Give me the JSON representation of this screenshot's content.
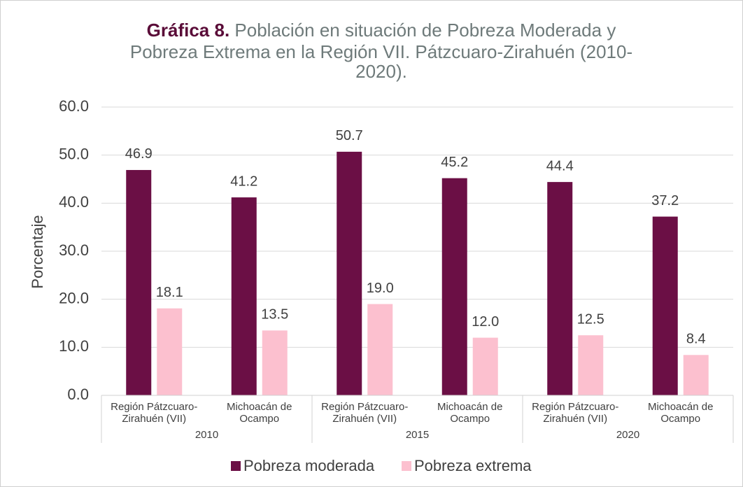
{
  "chart_data": {
    "type": "bar",
    "title_prefix": "Gráfica 8.",
    "title_lines": [
      "Población en situación de Pobreza Moderada y",
      "Pobreza Extrema  en la Región VII. Pátzcuaro-Zirahuén (2010-",
      "2020)."
    ],
    "y_label": "Porcentaje",
    "categories": [
      "Región Pátzcuaro-Zirahuén (VII)",
      "Michoacán de Ocampo",
      "Región Pátzcuaro-Zirahuén (VII)",
      "Michoacán de Ocampo",
      "Región Pátzcuaro-Zirahuén (VII)",
      "Michoacán de Ocampo"
    ],
    "groups": [
      "2010",
      "2015",
      "2020"
    ],
    "series": [
      {
        "name": "Pobreza moderada",
        "color": "#6b0f45",
        "values": [
          46.9,
          41.2,
          50.7,
          45.2,
          44.4,
          37.2
        ],
        "value_labels": [
          "46.9",
          "41.2",
          "50.7",
          "45.2",
          "44.4",
          "37.2"
        ]
      },
      {
        "name": "Pobreza extrema",
        "color": "#fcc0cf",
        "values": [
          18.1,
          13.5,
          19.0,
          12.0,
          12.5,
          8.4
        ],
        "value_labels": [
          "18.1",
          "13.5",
          "19.0",
          "12.0",
          "12.5",
          "8.4"
        ]
      }
    ],
    "ylim": [
      0,
      60
    ],
    "yticks": [
      {
        "value": 0,
        "label": "0.0"
      },
      {
        "value": 10,
        "label": "10.0"
      },
      {
        "value": 20,
        "label": "20.0"
      },
      {
        "value": 30,
        "label": "30.0"
      },
      {
        "value": 40,
        "label": "40.0"
      },
      {
        "value": 50,
        "label": "50.0"
      },
      {
        "value": 60,
        "label": "60.0"
      }
    ],
    "grid": true,
    "legend": "bottom"
  }
}
